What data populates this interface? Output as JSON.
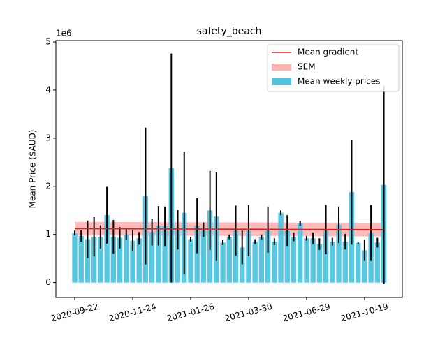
{
  "chart_data": {
    "type": "bar",
    "title": "safety_beach",
    "y_label": "Mean Price ($AUD)",
    "y_offset_label": "1e6",
    "categories": [
      "2020-09-22",
      null,
      null,
      null,
      null,
      null,
      null,
      null,
      null,
      "2020-11-24",
      null,
      null,
      null,
      null,
      null,
      null,
      null,
      null,
      "2021-01-26",
      null,
      null,
      null,
      null,
      null,
      null,
      null,
      null,
      "2021-03-30",
      null,
      null,
      null,
      null,
      null,
      null,
      null,
      null,
      "2021-06-29",
      null,
      null,
      null,
      null,
      null,
      null,
      null,
      null,
      "2021-10-19",
      null,
      null,
      null
    ],
    "bars": {
      "name": "Mean weekly prices",
      "color": "#4fc4df",
      "values": [
        1.03,
        0.97,
        0.9,
        0.95,
        0.95,
        1.4,
        0.95,
        0.93,
        1.0,
        0.87,
        0.92,
        1.8,
        1.05,
        1.18,
        1.17,
        2.38,
        1.1,
        1.45,
        0.9,
        1.18,
        1.1,
        1.5,
        1.37,
        0.83,
        0.95,
        1.08,
        0.73,
        1.08,
        0.85,
        0.95,
        1.1,
        0.85,
        1.45,
        1.08,
        0.95,
        1.23,
        0.92,
        0.92,
        0.8,
        1.1,
        0.85,
        1.2,
        0.85,
        1.88,
        0.82,
        0.67,
        1.03,
        0.83,
        2.03
      ],
      "errors": [
        0.05,
        0.12,
        0.39,
        0.41,
        0.24,
        0.59,
        0.35,
        0.22,
        0.12,
        0.22,
        0.13,
        1.42,
        0.28,
        0.41,
        0.41,
        2.38,
        0.41,
        1.27,
        0.05,
        0.57,
        0.15,
        0.82,
        0.92,
        0.05,
        0.05,
        0.52,
        0.35,
        0.53,
        0.05,
        0.05,
        0.48,
        0.07,
        0.05,
        0.32,
        0.09,
        0.05,
        0.05,
        0.12,
        0.12,
        0.51,
        0.08,
        0.38,
        0.16,
        1.09,
        0.02,
        0.22,
        0.58,
        0.1,
        2.06
      ]
    },
    "line": {
      "name": "Mean gradient",
      "color": "#e8191a",
      "values": [
        1.12,
        1.1
      ]
    },
    "band": {
      "name": "SEM",
      "color": "#ffb3b3",
      "lower": [
        0.98,
        0.96
      ],
      "upper": [
        1.26,
        1.24
      ]
    },
    "ylim": [
      -0.31,
      5.03
    ],
    "yticks": [
      0,
      1,
      2,
      3,
      4,
      5
    ],
    "legend": "upper right"
  }
}
